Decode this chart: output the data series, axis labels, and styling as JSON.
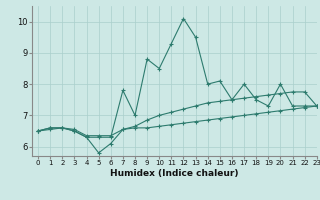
{
  "xlabel": "Humidex (Indice chaleur)",
  "background_color": "#cde8e5",
  "grid_color": "#aacfcc",
  "line_color": "#2d7b6e",
  "xlim": [
    -0.5,
    23
  ],
  "ylim": [
    5.7,
    10.5
  ],
  "xticks": [
    0,
    1,
    2,
    3,
    4,
    5,
    6,
    7,
    8,
    9,
    10,
    11,
    12,
    13,
    14,
    15,
    16,
    17,
    18,
    19,
    20,
    21,
    22,
    23
  ],
  "yticks": [
    6,
    7,
    8,
    9,
    10
  ],
  "series": [
    {
      "x": [
        0,
        1,
        2,
        3,
        4,
        5,
        6,
        7,
        8,
        9,
        10,
        11,
        12,
        13,
        14,
        15,
        16,
        17,
        18,
        19,
        20,
        21,
        22,
        23
      ],
      "y": [
        6.5,
        6.6,
        6.6,
        6.5,
        6.3,
        6.3,
        6.3,
        7.8,
        7.0,
        8.8,
        8.5,
        9.3,
        10.1,
        9.5,
        8.0,
        8.1,
        7.5,
        8.0,
        7.5,
        7.3,
        8.0,
        7.3,
        7.3,
        7.3
      ],
      "marker": true
    },
    {
      "x": [
        0,
        1,
        2,
        3,
        4,
        5,
        6,
        7,
        8,
        9,
        10,
        11,
        12,
        13,
        14,
        15,
        16,
        17,
        18,
        19,
        20,
        21,
        22,
        23
      ],
      "y": [
        6.5,
        6.6,
        6.6,
        6.5,
        6.3,
        5.8,
        6.1,
        6.55,
        6.6,
        6.6,
        6.65,
        6.7,
        6.75,
        6.8,
        6.85,
        6.9,
        6.95,
        7.0,
        7.05,
        7.1,
        7.15,
        7.2,
        7.25,
        7.3
      ],
      "marker": true
    },
    {
      "x": [
        0,
        1,
        2,
        3,
        4,
        5,
        6,
        7,
        8,
        9,
        10,
        11,
        12,
        13,
        14,
        15,
        16,
        17,
        18,
        19,
        20,
        21,
        22,
        23
      ],
      "y": [
        6.5,
        6.55,
        6.6,
        6.55,
        6.35,
        6.35,
        6.35,
        6.55,
        6.65,
        6.85,
        7.0,
        7.1,
        7.2,
        7.3,
        7.4,
        7.45,
        7.5,
        7.55,
        7.6,
        7.65,
        7.7,
        7.75,
        7.75,
        7.3
      ],
      "marker": true
    }
  ]
}
